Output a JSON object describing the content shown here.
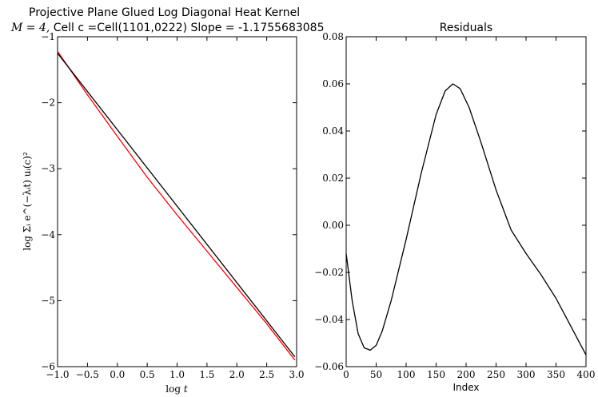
{
  "chart_data": [
    {
      "type": "line",
      "title_line1": "Projective Plane Glued Log Diagonal Heat Kernel",
      "title_line2_math": "M = 4,",
      "title_line2_rest": " Cell c =Cell(1101,0222) Slope = -1.1755683085",
      "xlabel": "log t",
      "ylabel": "log Σᵢ e^(−λᵢt) uᵢ(c)²",
      "xlim": [
        -1.0,
        3.0
      ],
      "ylim": [
        -6,
        -1
      ],
      "x_ticks": [
        "−1.0",
        "−0.5",
        "0.0",
        "0.5",
        "1.0",
        "1.5",
        "2.0",
        "2.5",
        "3.0"
      ],
      "y_ticks": [
        "−6",
        "−5",
        "−4",
        "−3",
        "−2",
        "−1"
      ],
      "x_tick_values": [
        -1.0,
        -0.5,
        0.0,
        0.5,
        1.0,
        1.5,
        2.0,
        2.5,
        3.0
      ],
      "y_tick_values": [
        -6,
        -5,
        -4,
        -3,
        -2,
        -1
      ],
      "series": [
        {
          "color": "#ff0000",
          "x": [
            -1.0,
            -0.5,
            0.0,
            0.5,
            1.0,
            1.5,
            2.0,
            2.5,
            2.97
          ],
          "y": [
            -1.22,
            -1.88,
            -2.51,
            -3.13,
            -3.7,
            -4.25,
            -4.8,
            -5.35,
            -5.9
          ]
        },
        {
          "color": "#000000",
          "x": [
            -1.0,
            2.97
          ],
          "y": [
            -1.25,
            -5.85
          ]
        }
      ]
    },
    {
      "type": "line",
      "title": "Residuals",
      "xlabel": "Index",
      "ylabel": "",
      "xlim": [
        0,
        400
      ],
      "ylim": [
        -0.06,
        0.08
      ],
      "x_ticks": [
        "0",
        "50",
        "100",
        "150",
        "200",
        "250",
        "300",
        "350",
        "400"
      ],
      "y_ticks": [
        "−0.06",
        "−0.04",
        "−0.02",
        "0.00",
        "0.02",
        "0.04",
        "0.06",
        "0.08"
      ],
      "x_tick_values": [
        0,
        50,
        100,
        150,
        200,
        250,
        300,
        350,
        400
      ],
      "y_tick_values": [
        -0.06,
        -0.04,
        -0.02,
        0.0,
        0.02,
        0.04,
        0.06,
        0.08
      ],
      "series": [
        {
          "color": "#000000",
          "x": [
            0,
            10,
            20,
            30,
            40,
            50,
            60,
            75,
            100,
            125,
            150,
            165,
            178,
            190,
            205,
            225,
            250,
            275,
            300,
            325,
            350,
            375,
            400
          ],
          "y": [
            -0.012,
            -0.032,
            -0.046,
            -0.052,
            -0.053,
            -0.051,
            -0.045,
            -0.032,
            -0.006,
            0.022,
            0.047,
            0.057,
            0.06,
            0.058,
            0.05,
            0.035,
            0.015,
            -0.002,
            -0.012,
            -0.021,
            -0.031,
            -0.043,
            -0.055
          ]
        }
      ]
    }
  ]
}
